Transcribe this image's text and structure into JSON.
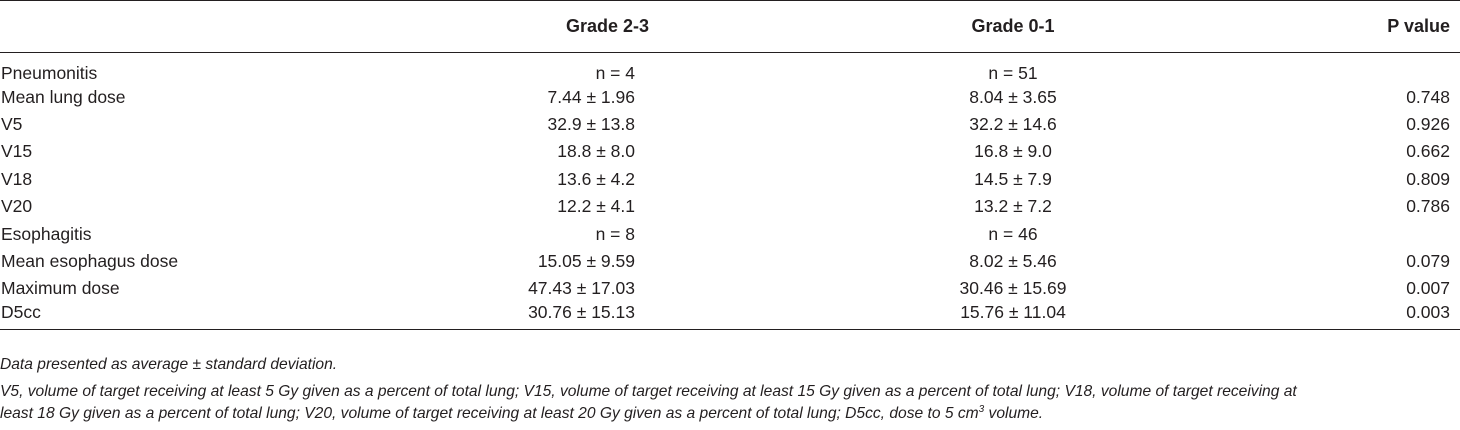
{
  "table": {
    "headers": [
      "",
      "Grade 2-3",
      "Grade 0-1",
      "P value"
    ],
    "rows": [
      [
        "Pneumonitis",
        "n = 4",
        "n = 51",
        ""
      ],
      [
        "Mean lung dose",
        "7.44 ± 1.96",
        "8.04 ± 3.65",
        "0.748"
      ],
      [
        "V5",
        "32.9 ± 13.8",
        "32.2 ± 14.6",
        "0.926"
      ],
      [
        "V15",
        "18.8 ± 8.0",
        "16.8 ± 9.0",
        "0.662"
      ],
      [
        "V18",
        "13.6 ± 4.2",
        "14.5 ± 7.9",
        "0.809"
      ],
      [
        "V20",
        "12.2 ± 4.1",
        "13.2 ± 7.2",
        "0.786"
      ],
      [
        "Esophagitis",
        "n = 8",
        "n = 46",
        ""
      ],
      [
        "Mean esophagus dose",
        "15.05 ± 9.59",
        "8.02 ± 5.46",
        "0.079"
      ],
      [
        "Maximum dose",
        "47.43 ± 17.03",
        "30.46 ± 15.69",
        "0.007"
      ],
      [
        "D5cc",
        "30.76 ± 15.13",
        "15.76 ± 11.04",
        "0.003"
      ]
    ]
  },
  "footnotes": {
    "data_note": "Data presented as average ± standard deviation.",
    "abbrev_line1": "V5, volume of target receiving at least 5 Gy given as a percent of total lung; V15, volume of target receiving at least 15 Gy given as a percent of total lung; V18, volume of target receiving at",
    "abbrev_line2_pre": "least 18 Gy given as a percent of total lung; V20, volume of target receiving at least 20 Gy given as a percent of total lung; D5cc, dose to 5 cm",
    "abbrev_line2_sup": "3",
    "abbrev_line2_post": " volume."
  }
}
